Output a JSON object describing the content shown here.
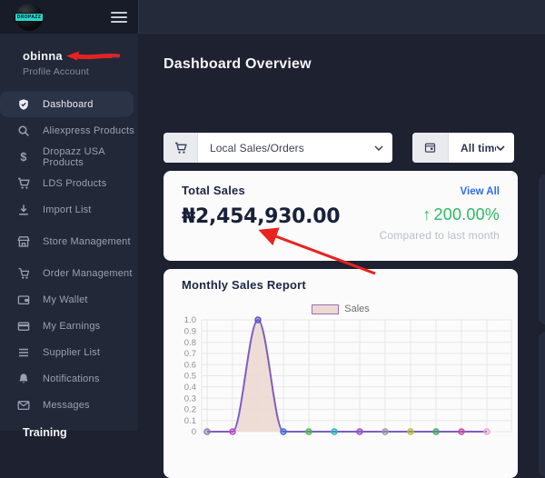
{
  "brand": {
    "logo_text": "DROPAZZ"
  },
  "profile": {
    "name": "obinna",
    "name_redacted": true,
    "subtitle": "Profile Account"
  },
  "sidebar": {
    "items": [
      {
        "label": "Dashboard",
        "icon": "shield-check",
        "active": true
      },
      {
        "label": "Aliexpress Products",
        "icon": "search"
      },
      {
        "label": "Dropazz USA Products",
        "icon": "dollar"
      },
      {
        "label": "LDS Products",
        "icon": "cart"
      },
      {
        "label": "Import List",
        "icon": "download"
      },
      {
        "label": "Store Management",
        "icon": "store",
        "section_break": true
      },
      {
        "label": "Order Management",
        "icon": "order",
        "section_break": true
      },
      {
        "label": "My Wallet",
        "icon": "wallet"
      },
      {
        "label": "My Earnings",
        "icon": "card"
      },
      {
        "label": "Supplier List",
        "icon": "list"
      },
      {
        "label": "Notifications",
        "icon": "bell"
      },
      {
        "label": "Messages",
        "icon": "envelope"
      }
    ],
    "footer_label": "Training"
  },
  "page": {
    "title": "Dashboard Overview"
  },
  "filters": {
    "sales_type": {
      "selected": "Local Sales/Orders",
      "icon": "cart"
    },
    "time_range": {
      "selected": "All time",
      "icon": "calendar"
    }
  },
  "total_sales": {
    "title": "Total Sales",
    "view_all_label": "View All",
    "amount": "₦2,454,930.00",
    "change_percent": "200.00%",
    "change_direction": "up",
    "compare_label": "Compared to last month"
  },
  "sales_report": {
    "title": "Monthly Sales Report",
    "legend_label": "Sales"
  },
  "chart_data": {
    "type": "area",
    "title": "Monthly Sales Report",
    "series_name": "Sales",
    "point_count": 12,
    "x_labels_visible": false,
    "values": [
      0,
      0,
      1,
      0,
      0,
      0,
      0,
      0,
      0,
      0,
      0,
      0
    ],
    "ylim": [
      0,
      1
    ],
    "y_ticks": [
      "1.0",
      "0.9",
      "0.8",
      "0.7",
      "0.6",
      "0.5",
      "0.4",
      "0.3",
      "0.2",
      "0.1",
      "0"
    ],
    "grid": true,
    "legend_position": "top",
    "line_color": "#7d5ec2",
    "fill_color": "#ecd9d2",
    "point_colors": [
      "#8f7db2",
      "#b94fc6",
      "#5b4fc8",
      "#3c6de0",
      "#49b94e",
      "#27b7b7",
      "#9c50c6",
      "#9a9aa0",
      "#aec439",
      "#41ae5e",
      "#ca50a0",
      "#efa6c7"
    ]
  },
  "colors": {
    "accent_blue": "#2d6cf6",
    "positive_green": "#2eb862",
    "annotation_red": "#e8231d",
    "sidebar_bg": "#222838",
    "main_bg": "#1d2130"
  }
}
